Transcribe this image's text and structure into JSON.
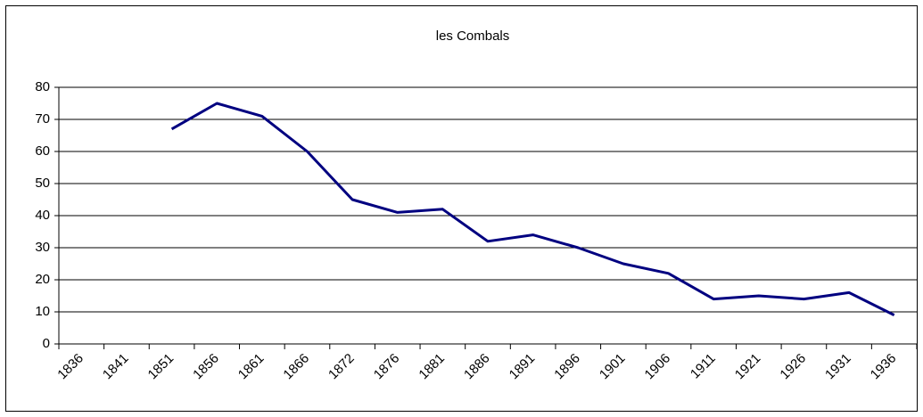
{
  "chart_data": {
    "type": "line",
    "title": "les Combals",
    "categories": [
      "1836",
      "1841",
      "1851",
      "1856",
      "1861",
      "1866",
      "1872",
      "1876",
      "1881",
      "1886",
      "1891",
      "1896",
      "1901",
      "1906",
      "1911",
      "1921",
      "1926",
      "1931",
      "1936"
    ],
    "series": [
      {
        "name": "les Combals",
        "color": "#000080",
        "values": [
          null,
          null,
          67,
          75,
          71,
          60,
          45,
          41,
          42,
          32,
          34,
          30,
          25,
          22,
          14,
          15,
          14,
          16,
          9
        ]
      }
    ],
    "ylim": [
      0,
      80
    ],
    "yticks": [
      0,
      10,
      20,
      30,
      40,
      50,
      60,
      70,
      80
    ],
    "grid": true
  }
}
